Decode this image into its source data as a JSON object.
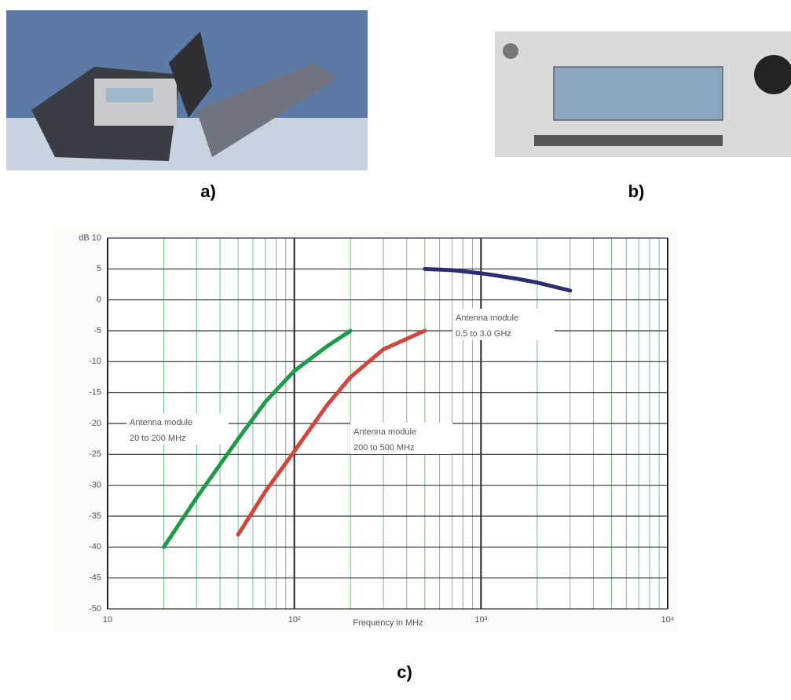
{
  "chart_data": {
    "type": "line",
    "xlabel": "Frequency in MHz",
    "xscale": "log",
    "xlim": [
      10,
      10000
    ],
    "ylim": [
      -50,
      10
    ],
    "xticks": [
      10,
      {
        "value": 100,
        "label": "10²"
      },
      {
        "value": 1000,
        "label": "10³"
      },
      {
        "value": 10000,
        "label": "10⁴"
      }
    ],
    "x_minor_ticks": [
      20,
      30,
      40,
      50,
      60,
      70,
      80,
      90,
      200,
      300,
      400,
      500,
      600,
      700,
      800,
      900,
      2000,
      3000,
      4000,
      5000,
      6000,
      7000,
      8000,
      9000
    ],
    "yticks": [
      {
        "value": 10,
        "label": "dB 10"
      },
      5,
      0,
      -5,
      -10,
      -15,
      -20,
      -25,
      -30,
      -35,
      -40,
      -45,
      -50
    ],
    "grid": true,
    "series": [
      {
        "color": "#1f9a4a",
        "x": [
          20,
          30,
          50,
          70,
          100,
          150,
          200
        ],
        "values": [
          -40,
          -32,
          -22.5,
          -16.5,
          -11.5,
          -7.5,
          -5
        ]
      },
      {
        "color": "#d0453c",
        "x": [
          50,
          70,
          100,
          150,
          200,
          300,
          500
        ],
        "values": [
          -38,
          -31,
          -24.5,
          -17,
          -12.5,
          -8,
          -5
        ]
      },
      {
        "color": "#2b2e6e",
        "x": [
          500,
          700,
          1000,
          1500,
          2000,
          3000
        ],
        "values": [
          5,
          4.8,
          4.3,
          3.5,
          2.8,
          1.5
        ]
      }
    ],
    "annotations": [
      [
        "Antenna module",
        "20 to 200 MHz"
      ],
      [
        "Antenna module",
        "200 to 500 MHz"
      ],
      [
        "Antenna module",
        "0.5 to 3.0 GHz"
      ]
    ],
    "captions": [
      "a)",
      "b)",
      "c)"
    ]
  }
}
